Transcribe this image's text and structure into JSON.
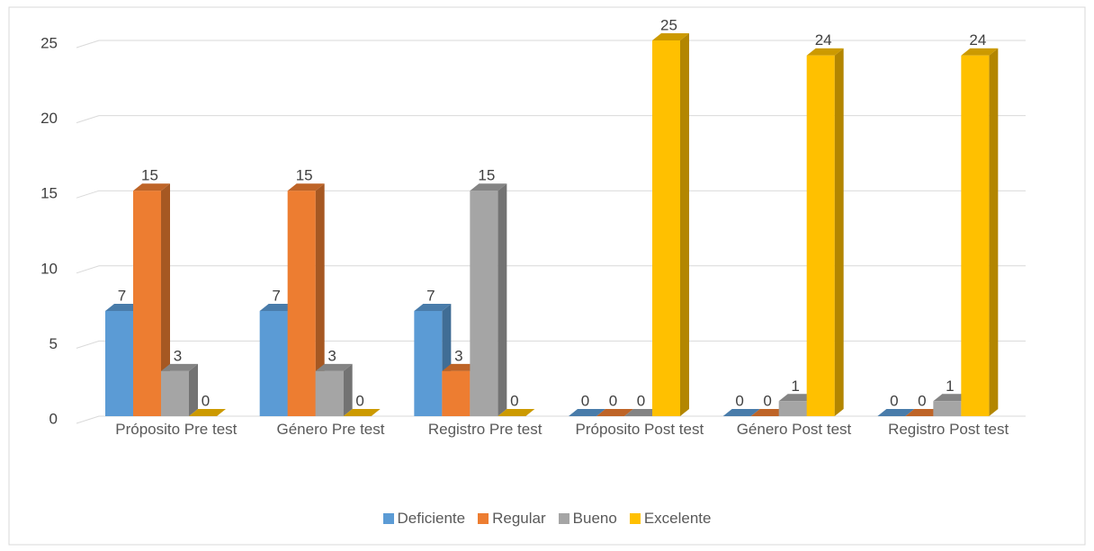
{
  "chart_data": {
    "type": "bar3d",
    "categories": [
      "Próposito Pre test",
      "Género Pre test",
      "Registro Pre test",
      "Próposito Post test",
      "Género Post test",
      "Registro Post test"
    ],
    "series": [
      {
        "name": "Deficiente",
        "color": "#5b9bd5",
        "values": [
          7,
          7,
          7,
          0,
          0,
          0
        ]
      },
      {
        "name": "Regular",
        "color": "#ed7d31",
        "values": [
          15,
          15,
          3,
          0,
          0,
          0
        ]
      },
      {
        "name": "Bueno",
        "color": "#a5a5a5",
        "values": [
          3,
          3,
          15,
          0,
          1,
          1
        ]
      },
      {
        "name": "Excelente",
        "color": "#ffc000",
        "values": [
          0,
          0,
          0,
          25,
          24,
          24
        ]
      }
    ],
    "ylim": [
      0,
      25
    ],
    "yticks": [
      0,
      5,
      10,
      15,
      20,
      25
    ],
    "grid": true,
    "legend": "bottom"
  }
}
